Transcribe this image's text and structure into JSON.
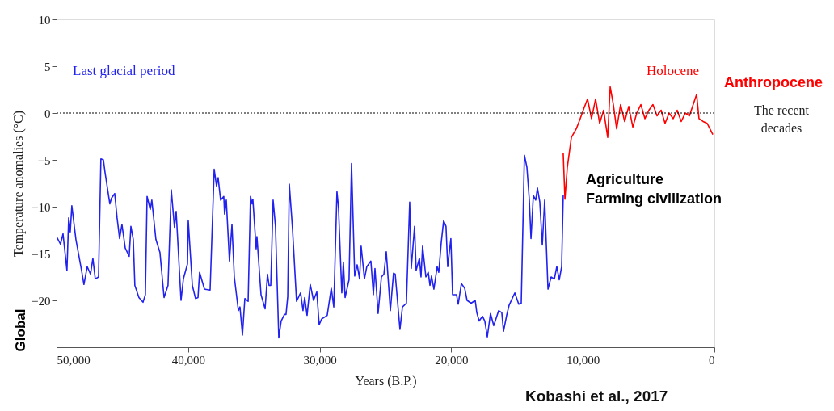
{
  "chart_data": {
    "type": "line",
    "xlabel": "Years (B.P.)",
    "ylabel": "Temperature anomalies (°C)",
    "xlim": [
      50000,
      0
    ],
    "ylim": [
      -25,
      10
    ],
    "xticks": [
      {
        "value": 50000,
        "label": "50,000"
      },
      {
        "value": 40000,
        "label": "40,000"
      },
      {
        "value": 30000,
        "label": "30,000"
      },
      {
        "value": 20000,
        "label": "20,000"
      },
      {
        "value": 10000,
        "label": "10,000"
      },
      0
    ],
    "yticks": [
      -20,
      -15,
      -10,
      -5,
      0,
      5,
      10
    ],
    "grid": false,
    "marker": "none",
    "line_style": "solid",
    "ref_lines": [
      {
        "axis": "y",
        "value": 0,
        "color": "#000000",
        "line_style": "dotted"
      }
    ],
    "series": [
      {
        "name": "Last glacial period",
        "color": "#2222ee",
        "x": [
          50000,
          49700,
          49510,
          49210,
          49080,
          48960,
          48840,
          48530,
          48100,
          47920,
          47670,
          47420,
          47240,
          47060,
          46810,
          46630,
          46440,
          46320,
          45950,
          45830,
          45580,
          45400,
          45210,
          45030,
          44780,
          44480,
          44350,
          44170,
          44050,
          43740,
          43430,
          43250,
          43120,
          42880,
          42760,
          42450,
          42140,
          41830,
          41530,
          41280,
          41040,
          40910,
          40540,
          40360,
          40050,
          39990,
          39680,
          39440,
          39250,
          39130,
          38760,
          38330,
          38020,
          37840,
          37720,
          37530,
          37290,
          37230,
          37100,
          36860,
          36670,
          36490,
          36180,
          36060,
          35870,
          35690,
          35440,
          35260,
          35140,
          35080,
          34830,
          34770,
          34460,
          34150,
          33970,
          33850,
          33720,
          33540,
          33360,
          33110,
          32930,
          32680,
          32560,
          32430,
          32310,
          32070,
          31760,
          31450,
          31270,
          31140,
          30960,
          30720,
          30470,
          30220,
          30040,
          29860,
          29430,
          29120,
          28930,
          28690,
          28570,
          28320,
          28200,
          28070,
          27770,
          27580,
          27340,
          27150,
          26970,
          26850,
          26600,
          26420,
          26110,
          25920,
          25800,
          25560,
          25310,
          25120,
          24940,
          24630,
          24390,
          24260,
          23900,
          23710,
          23410,
          23160,
          23040,
          22790,
          22670,
          22420,
          22300,
          22180,
          21930,
          21750,
          21620,
          21500,
          21320,
          21070,
          20950,
          20760,
          20580,
          20400,
          20270,
          20030,
          19900,
          19600,
          19470,
          19230,
          18980,
          18800,
          18490,
          18180,
          18060,
          17880,
          17630,
          17450,
          17260,
          17020,
          16770,
          16400,
          16160,
          16030,
          15790,
          15600,
          15170,
          14870,
          14680,
          14440,
          14250,
          14070,
          13940,
          13760,
          13580,
          13450,
          13270,
          13080,
          12900,
          12650,
          12410,
          12160,
          11980,
          11790,
          11610,
          11490
        ],
        "values": [
          -13.2,
          -14.0,
          -12.9,
          -16.8,
          -11.2,
          -12.7,
          -9.9,
          -13.5,
          -16.8,
          -18.3,
          -16.4,
          -17.2,
          -15.5,
          -17.7,
          -17.5,
          -4.9,
          -5.0,
          -6.3,
          -9.7,
          -9.1,
          -8.6,
          -11.2,
          -13.4,
          -11.9,
          -14.4,
          -15.3,
          -12.1,
          -13.5,
          -18.4,
          -19.7,
          -20.2,
          -19.4,
          -8.9,
          -10.3,
          -9.3,
          -13.5,
          -14.9,
          -19.7,
          -18.4,
          -8.2,
          -12.2,
          -10.5,
          -20.0,
          -17.7,
          -16.1,
          -11.5,
          -18.4,
          -19.8,
          -19.7,
          -17.0,
          -18.8,
          -18.9,
          -6.0,
          -7.8,
          -6.9,
          -9.3,
          -8.9,
          -10.8,
          -9.3,
          -15.8,
          -11.9,
          -17.5,
          -21.1,
          -20.7,
          -23.7,
          -19.8,
          -20.1,
          -8.9,
          -9.7,
          -9.2,
          -14.5,
          -13.2,
          -19.4,
          -20.9,
          -17.2,
          -18.4,
          -18.4,
          -9.3,
          -12.1,
          -24.0,
          -22.2,
          -21.5,
          -21.5,
          -19.6,
          -7.6,
          -12.3,
          -20.1,
          -19.2,
          -21.1,
          -19.7,
          -21.6,
          -18.3,
          -20.0,
          -19.1,
          -22.6,
          -22.0,
          -21.6,
          -18.7,
          -20.7,
          -8.4,
          -10.1,
          -19.2,
          -15.9,
          -19.7,
          -17.8,
          -5.4,
          -17.4,
          -16.2,
          -17.7,
          -14.2,
          -17.7,
          -16.4,
          -15.8,
          -19.4,
          -16.6,
          -21.4,
          -17.5,
          -17.2,
          -14.8,
          -21.1,
          -17.1,
          -17.2,
          -23.1,
          -20.7,
          -20.3,
          -9.5,
          -16.6,
          -12.1,
          -16.8,
          -15.5,
          -17.5,
          -14.2,
          -17.5,
          -17.0,
          -18.4,
          -17.4,
          -18.8,
          -16.4,
          -17.0,
          -13.8,
          -11.5,
          -12.1,
          -16.4,
          -13.4,
          -19.4,
          -19.4,
          -20.4,
          -18.2,
          -18.7,
          -20.0,
          -20.3,
          -20.0,
          -21.3,
          -22.2,
          -21.7,
          -22.2,
          -23.9,
          -21.4,
          -22.7,
          -21.1,
          -21.3,
          -23.3,
          -21.6,
          -20.5,
          -19.2,
          -20.4,
          -20.3,
          -4.5,
          -5.8,
          -9.2,
          -13.4,
          -8.8,
          -9.3,
          -8.0,
          -9.5,
          -14.1,
          -9.3,
          -18.8,
          -17.5,
          -17.7,
          -16.4,
          -17.8,
          -16.4,
          -8.8
        ]
      },
      {
        "name": "Holocene",
        "color": "#ff0000",
        "x": [
          11490,
          11360,
          11180,
          10870,
          10500,
          10200,
          9890,
          9640,
          9340,
          9030,
          8720,
          8420,
          8110,
          7920,
          7680,
          7430,
          7130,
          6820,
          6510,
          6200,
          5900,
          5590,
          5280,
          4980,
          4670,
          4360,
          4050,
          3750,
          3440,
          3130,
          2830,
          2520,
          2210,
          1900,
          1350,
          1170,
          860,
          550,
          120
        ],
        "values": [
          -4.3,
          -9.2,
          -5.8,
          -2.6,
          -1.7,
          -0.6,
          0.6,
          1.5,
          -0.6,
          1.5,
          -1.1,
          0.3,
          -2.6,
          2.8,
          0.9,
          -1.7,
          0.9,
          -0.9,
          0.7,
          -1.5,
          0.0,
          0.9,
          -0.6,
          0.3,
          0.9,
          -0.3,
          0.3,
          -1.1,
          0.0,
          -0.6,
          0.3,
          -0.9,
          0.0,
          -0.3,
          2.0,
          -0.6,
          -0.9,
          -1.1,
          -2.3
        ]
      }
    ],
    "annotations": [
      "Anthropocene",
      "The recent\ndecades",
      "Agriculture\nFarming civilization",
      "Global",
      "Kobashi et al., 2017"
    ]
  }
}
